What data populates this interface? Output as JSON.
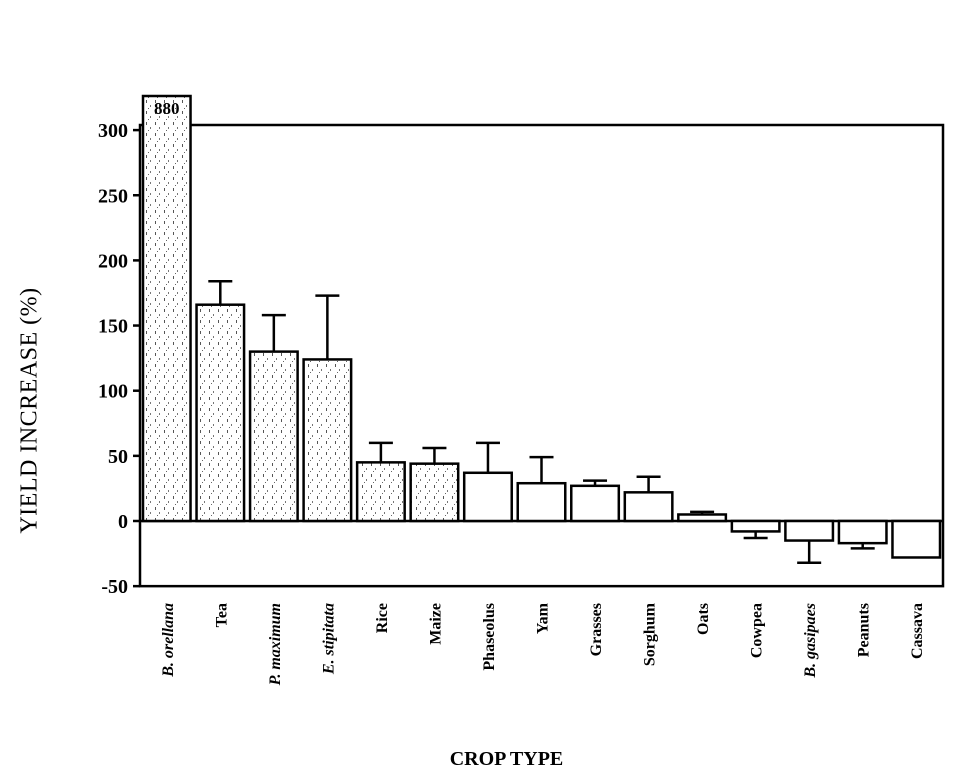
{
  "chart_data": {
    "type": "bar",
    "title": "",
    "xlabel": "CROP TYPE",
    "ylabel": "YIELD INCREASE (%)",
    "ylim": [
      -50,
      300
    ],
    "yticks": [
      300,
      250,
      200,
      150,
      100,
      50,
      0,
      -50
    ],
    "grid": false,
    "legend": null,
    "categories": [
      "B. orellana",
      "Tea",
      "P. maximum",
      "E. stipitata",
      "Rice",
      "Maize",
      "Phaseolus",
      "Yam",
      "Grasses",
      "Sorghum",
      "Oats",
      "Cowpea",
      "B. gasipaes",
      "Peanuts",
      "Cassava"
    ],
    "italic_categories": [
      "B. orellana",
      "P. maximum",
      "E. stipitata",
      "B. gasipaes"
    ],
    "values": [
      880,
      166,
      130,
      124,
      45,
      44,
      37,
      29,
      27,
      22,
      5,
      -8,
      -15,
      -17,
      -28
    ],
    "error_bars": [
      null,
      18,
      28,
      49,
      15,
      12,
      23,
      20,
      4,
      12,
      2,
      5,
      17,
      4,
      null
    ],
    "annotations": [
      {
        "category": "B. orellana",
        "text": "880",
        "note": "bar truncated above axis"
      }
    ],
    "stippled_bars": [
      "B. orellana",
      "Tea",
      "P. maximum",
      "E. stipitata",
      "Rice",
      "Maize"
    ]
  }
}
